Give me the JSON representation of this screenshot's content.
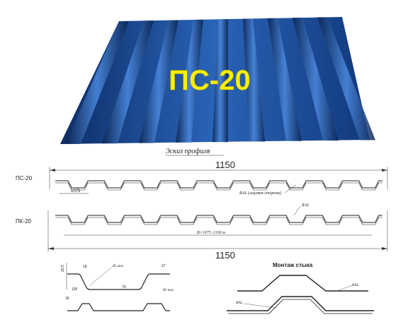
{
  "product": {
    "title": "ПС-20",
    "sketch_caption": "Эскиз профиля",
    "sheet_color": "#1c4f9a",
    "title_color": "#f7f000"
  },
  "profile_ps20": {
    "label": "ПС-20",
    "overall_width": "1150",
    "pitch": "1075",
    "note": "RAL (лицевая сторона)"
  },
  "profile_pk20": {
    "label": "ПК-20",
    "overall_width": "1150",
    "note": "RAL",
    "useful_width": "B=1075÷1100 м"
  },
  "detail": {
    "height": "20,5",
    "top_width": "18",
    "bottom_width": "27",
    "radius_left": "R5 max",
    "radius_right": "R5 max",
    "valley": "79",
    "lower_width": "105",
    "lower_top": "18"
  },
  "joint": {
    "title": "Монтаж стыка",
    "ral_top": "RAL",
    "ral_bottom": "RAL"
  }
}
